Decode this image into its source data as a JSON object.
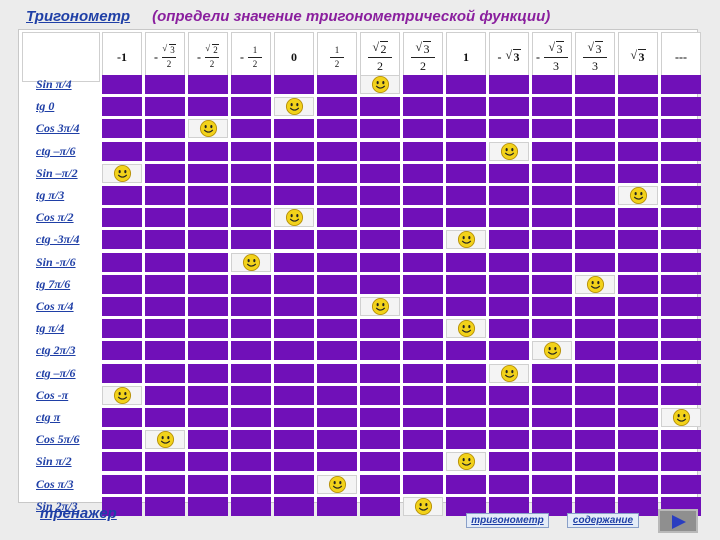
{
  "header": {
    "title": "Тригонометр",
    "subtitle": "(определи значение тригонометрической функции)"
  },
  "columns": [
    {
      "kind": "text",
      "text": "-1"
    },
    {
      "kind": "frac",
      "neg": true,
      "rad": "3",
      "den": "2",
      "small": true
    },
    {
      "kind": "frac",
      "neg": true,
      "rad": "2",
      "den": "2",
      "small": true
    },
    {
      "kind": "frac",
      "neg": true,
      "num": "1",
      "den": "2",
      "small": true
    },
    {
      "kind": "text",
      "text": "0"
    },
    {
      "kind": "frac",
      "neg": false,
      "num": "1",
      "den": "2",
      "small": true
    },
    {
      "kind": "frac",
      "neg": false,
      "rad": "2",
      "den": "2",
      "small": false
    },
    {
      "kind": "frac",
      "neg": false,
      "rad": "3",
      "den": "2",
      "small": false
    },
    {
      "kind": "text",
      "text": "1"
    },
    {
      "kind": "root",
      "neg": true,
      "rad": "3"
    },
    {
      "kind": "frac",
      "neg": true,
      "rad": "3",
      "den": "3",
      "small": false
    },
    {
      "kind": "frac",
      "neg": false,
      "rad": "3",
      "den": "3",
      "small": false
    },
    {
      "kind": "root",
      "neg": false,
      "rad": "3"
    },
    {
      "kind": "text",
      "text": "---"
    }
  ],
  "rows": [
    {
      "label": "Sin π/4",
      "answer": 6
    },
    {
      "label": "tg 0",
      "answer": 4
    },
    {
      "label": "Cos 3π/4",
      "answer": 2
    },
    {
      "label": "ctg –π/6",
      "answer": 9
    },
    {
      "label": "Sin –π/2",
      "answer": 0
    },
    {
      "label": "tg π/3",
      "answer": 12
    },
    {
      "label": "Cos π/2",
      "answer": 4
    },
    {
      "label": "ctg -3π/4",
      "answer": 8
    },
    {
      "label": "Sin -π/6",
      "answer": 3
    },
    {
      "label": "tg 7π/6",
      "answer": 11
    },
    {
      "label": "Cos π/4",
      "answer": 6
    },
    {
      "label": "tg π/4",
      "answer": 8
    },
    {
      "label": "ctg 2π/3",
      "answer": 10
    },
    {
      "label": "ctg –π/6",
      "answer": 9
    },
    {
      "label": "Cos -π",
      "answer": 0
    },
    {
      "label": "ctg π",
      "answer": 13
    },
    {
      "label": "Cos 5π/6",
      "answer": 1
    },
    {
      "label": "Sin π/2",
      "answer": 8
    },
    {
      "label": "Cos π/3",
      "answer": 5
    },
    {
      "label": "Sin 2π/3",
      "answer": 7
    }
  ],
  "footer": {
    "trainer": "тренажер",
    "trig_button": "тригонометр",
    "contents_button": "содержание",
    "next_icon": "play-arrow-icon"
  },
  "colors": {
    "cell": "#7010b8",
    "link": "#1f3fa6",
    "subtitle": "#8a1f9e",
    "smiley": "#f2d21a"
  }
}
